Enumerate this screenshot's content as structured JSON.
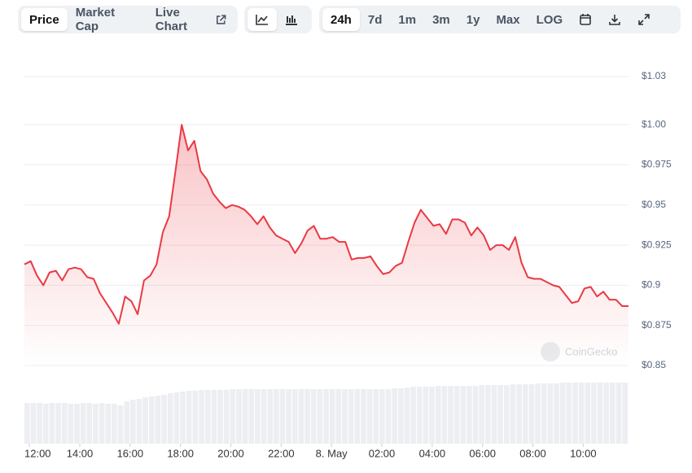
{
  "toolbar": {
    "views": [
      "Price",
      "Market Cap",
      "Live Chart"
    ],
    "ranges": [
      "24h",
      "7d",
      "1m",
      "3m",
      "1y",
      "Max",
      "LOG"
    ]
  },
  "watermark": "CoinGecko",
  "chart_data": {
    "type": "line",
    "x": [
      11.8,
      12.05,
      12.3,
      12.55,
      12.8,
      13.05,
      13.3,
      13.55,
      13.8,
      14.05,
      14.3,
      14.55,
      14.8,
      15.05,
      15.3,
      15.55,
      15.8,
      16.05,
      16.3,
      16.55,
      16.8,
      17.05,
      17.3,
      17.55,
      17.8,
      18.05,
      18.3,
      18.55,
      18.8,
      19.05,
      19.3,
      19.55,
      19.8,
      20.05,
      20.3,
      20.55,
      20.8,
      21.05,
      21.3,
      21.55,
      21.8,
      22.05,
      22.3,
      22.55,
      22.8,
      23.05,
      23.3,
      23.55,
      23.8,
      24.05,
      24.3,
      24.55,
      24.8,
      25.05,
      25.3,
      25.55,
      25.8,
      26.05,
      26.3,
      26.55,
      26.8,
      27.05,
      27.3,
      27.55,
      27.8,
      28.05,
      28.3,
      28.55,
      28.8,
      29.05,
      29.3,
      29.55,
      29.8,
      30.05,
      30.3,
      30.55,
      30.8,
      31.05,
      31.3,
      31.55,
      31.8,
      32.05,
      32.3,
      32.55,
      32.8,
      33.05,
      33.3,
      33.55,
      33.8,
      34.05,
      34.3,
      34.55,
      34.8,
      35.05,
      35.3,
      35.55,
      35.8
    ],
    "series": [
      {
        "color": "#ea3943",
        "values": [
          0.913,
          0.915,
          0.906,
          0.9,
          0.908,
          0.909,
          0.903,
          0.91,
          0.911,
          0.91,
          0.905,
          0.904,
          0.895,
          0.889,
          0.883,
          0.876,
          0.893,
          0.89,
          0.882,
          0.903,
          0.906,
          0.913,
          0.933,
          0.943,
          0.971,
          1.0,
          0.984,
          0.99,
          0.971,
          0.966,
          0.957,
          0.952,
          0.948,
          0.95,
          0.949,
          0.947,
          0.943,
          0.938,
          0.943,
          0.936,
          0.931,
          0.929,
          0.927,
          0.92,
          0.926,
          0.934,
          0.937,
          0.929,
          0.929,
          0.93,
          0.927,
          0.927,
          0.916,
          0.917,
          0.917,
          0.918,
          0.912,
          0.907,
          0.908,
          0.912,
          0.914,
          0.927,
          0.939,
          0.947,
          0.942,
          0.937,
          0.938,
          0.932,
          0.941,
          0.941,
          0.939,
          0.931,
          0.936,
          0.931,
          0.922,
          0.925,
          0.925,
          0.922,
          0.93,
          0.914,
          0.905,
          0.904,
          0.904,
          0.902,
          0.9,
          0.899,
          0.894,
          0.889,
          0.89,
          0.898,
          0.899,
          0.893,
          0.896,
          0.891,
          0.891,
          0.887,
          0.887
        ]
      }
    ],
    "volume": [
      50,
      50,
      50,
      49,
      50,
      50,
      50,
      49,
      49,
      50,
      50,
      49,
      50,
      49,
      49,
      47,
      52,
      54,
      55,
      57,
      58,
      59,
      60,
      62,
      63,
      64,
      65,
      65,
      66,
      66,
      66,
      66,
      66,
      67,
      67,
      67,
      67,
      67,
      67,
      67,
      67,
      67,
      67,
      67,
      67,
      67,
      67,
      67,
      67,
      67,
      67,
      67,
      67,
      67,
      67,
      67,
      67,
      67,
      67,
      68,
      68,
      69,
      70,
      70,
      70,
      70,
      71,
      71,
      71,
      71,
      71,
      71,
      71,
      72,
      72,
      72,
      72,
      72,
      73,
      73,
      73,
      73,
      74,
      74,
      74,
      74,
      75,
      75,
      75,
      75,
      75,
      75,
      75,
      75,
      75,
      75,
      75
    ],
    "xlim": [
      11.8,
      35.8
    ],
    "xticks": [
      {
        "value": 12,
        "label": "12:00"
      },
      {
        "value": 14,
        "label": "14:00"
      },
      {
        "value": 16,
        "label": "16:00"
      },
      {
        "value": 18,
        "label": "18:00"
      },
      {
        "value": 20,
        "label": "20:00"
      },
      {
        "value": 22,
        "label": "22:00"
      },
      {
        "value": 24,
        "label": "8. May"
      },
      {
        "value": 26,
        "label": "02:00"
      },
      {
        "value": 28,
        "label": "04:00"
      },
      {
        "value": 30,
        "label": "06:00"
      },
      {
        "value": 32,
        "label": "08:00"
      },
      {
        "value": 34,
        "label": "10:00"
      }
    ],
    "ylim": [
      0.85,
      1.03
    ],
    "yticks": [
      {
        "value": 1.03,
        "label": "$1.03"
      },
      {
        "value": 1,
        "label": "$1.00"
      },
      {
        "value": 0.975,
        "label": "$0.975"
      },
      {
        "value": 0.95,
        "label": "$0.95"
      },
      {
        "value": 0.925,
        "label": "$0.925"
      },
      {
        "value": 0.9,
        "label": "$0.9"
      },
      {
        "value": 0.875,
        "label": "$0.875"
      },
      {
        "value": 0.85,
        "label": "$0.85"
      }
    ],
    "grid": true
  }
}
